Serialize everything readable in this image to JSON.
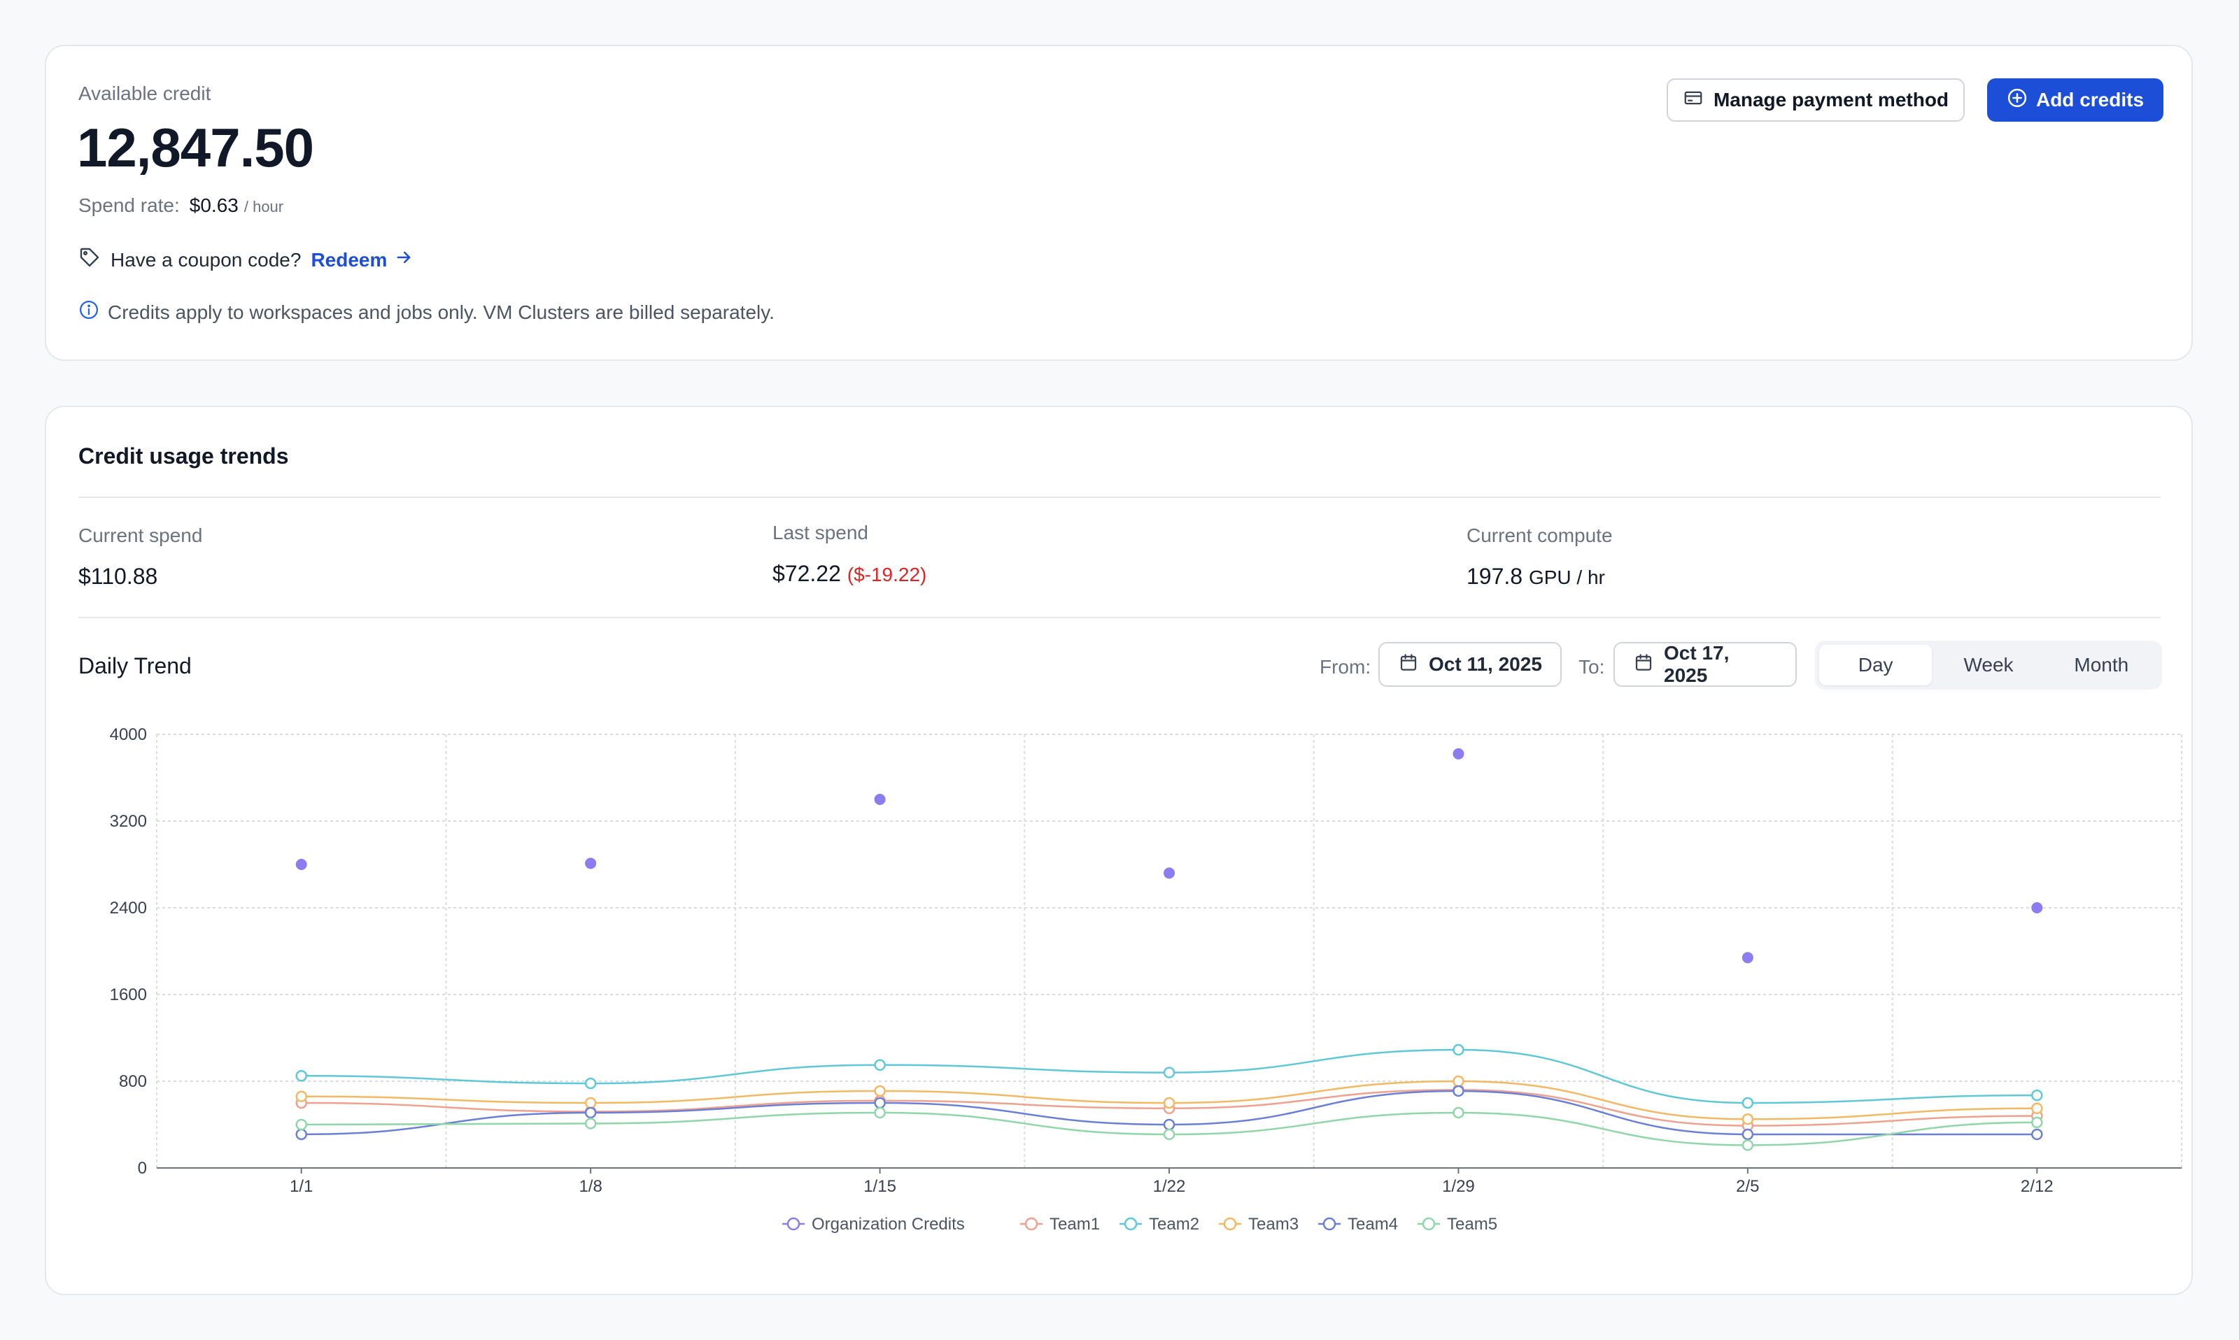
{
  "credit": {
    "label": "Available credit",
    "amount": "12,847.50",
    "spend_rate_label": "Spend rate:",
    "spend_rate_value": "$0.63",
    "spend_rate_unit": "/ hour",
    "coupon_text": "Have a coupon code?",
    "redeem_label": "Redeem",
    "info_text": "Credits apply to workspaces and jobs only. VM Clusters are billed separately.",
    "manage_button": "Manage payment method",
    "add_button": "Add credits"
  },
  "trends": {
    "title": "Credit usage trends",
    "current_spend_label": "Current spend",
    "current_spend_value": "$110.88",
    "last_spend_label": "Last spend",
    "last_spend_value": "$72.22",
    "last_spend_delta": "($-19.22)",
    "current_compute_label": "Current compute",
    "current_compute_value": "197.8",
    "current_compute_unit": "GPU / hr",
    "daily_title": "Daily Trend",
    "from_label": "From:",
    "from_date": "Oct 11, 2025",
    "to_label": "To:",
    "to_date": "Oct 17, 2025",
    "ranges": [
      "Day",
      "Week",
      "Month"
    ],
    "active_range": "Day"
  },
  "chart_data": {
    "type": "line",
    "title": "",
    "xlabel": "",
    "ylabel": "",
    "categories": [
      "1/1",
      "1/8",
      "1/15",
      "1/22",
      "1/29",
      "2/5",
      "2/12"
    ],
    "ylim": [
      0,
      4000
    ],
    "yticks": [
      0,
      800,
      1600,
      2400,
      3200,
      4000
    ],
    "grid": true,
    "legend_position": "bottom",
    "series": [
      {
        "name": "Organization Credits",
        "color": "#8b7cf0",
        "style": "scatter",
        "values": [
          2800,
          2810,
          3400,
          2720,
          3820,
          1940,
          2400
        ]
      },
      {
        "name": "Team1",
        "color": "#f0a08e",
        "style": "line",
        "values": [
          600,
          520,
          620,
          550,
          720,
          390,
          480
        ]
      },
      {
        "name": "Team2",
        "color": "#5ec8d8",
        "style": "line",
        "values": [
          850,
          780,
          950,
          880,
          1090,
          600,
          670
        ]
      },
      {
        "name": "Team3",
        "color": "#f5b862",
        "style": "line",
        "values": [
          660,
          600,
          710,
          600,
          800,
          450,
          550
        ]
      },
      {
        "name": "Team4",
        "color": "#6a7fd6",
        "style": "line",
        "values": [
          310,
          510,
          600,
          400,
          710,
          310,
          310
        ]
      },
      {
        "name": "Team5",
        "color": "#8fd6a8",
        "style": "line",
        "values": [
          400,
          410,
          510,
          310,
          510,
          210,
          420
        ]
      }
    ]
  }
}
